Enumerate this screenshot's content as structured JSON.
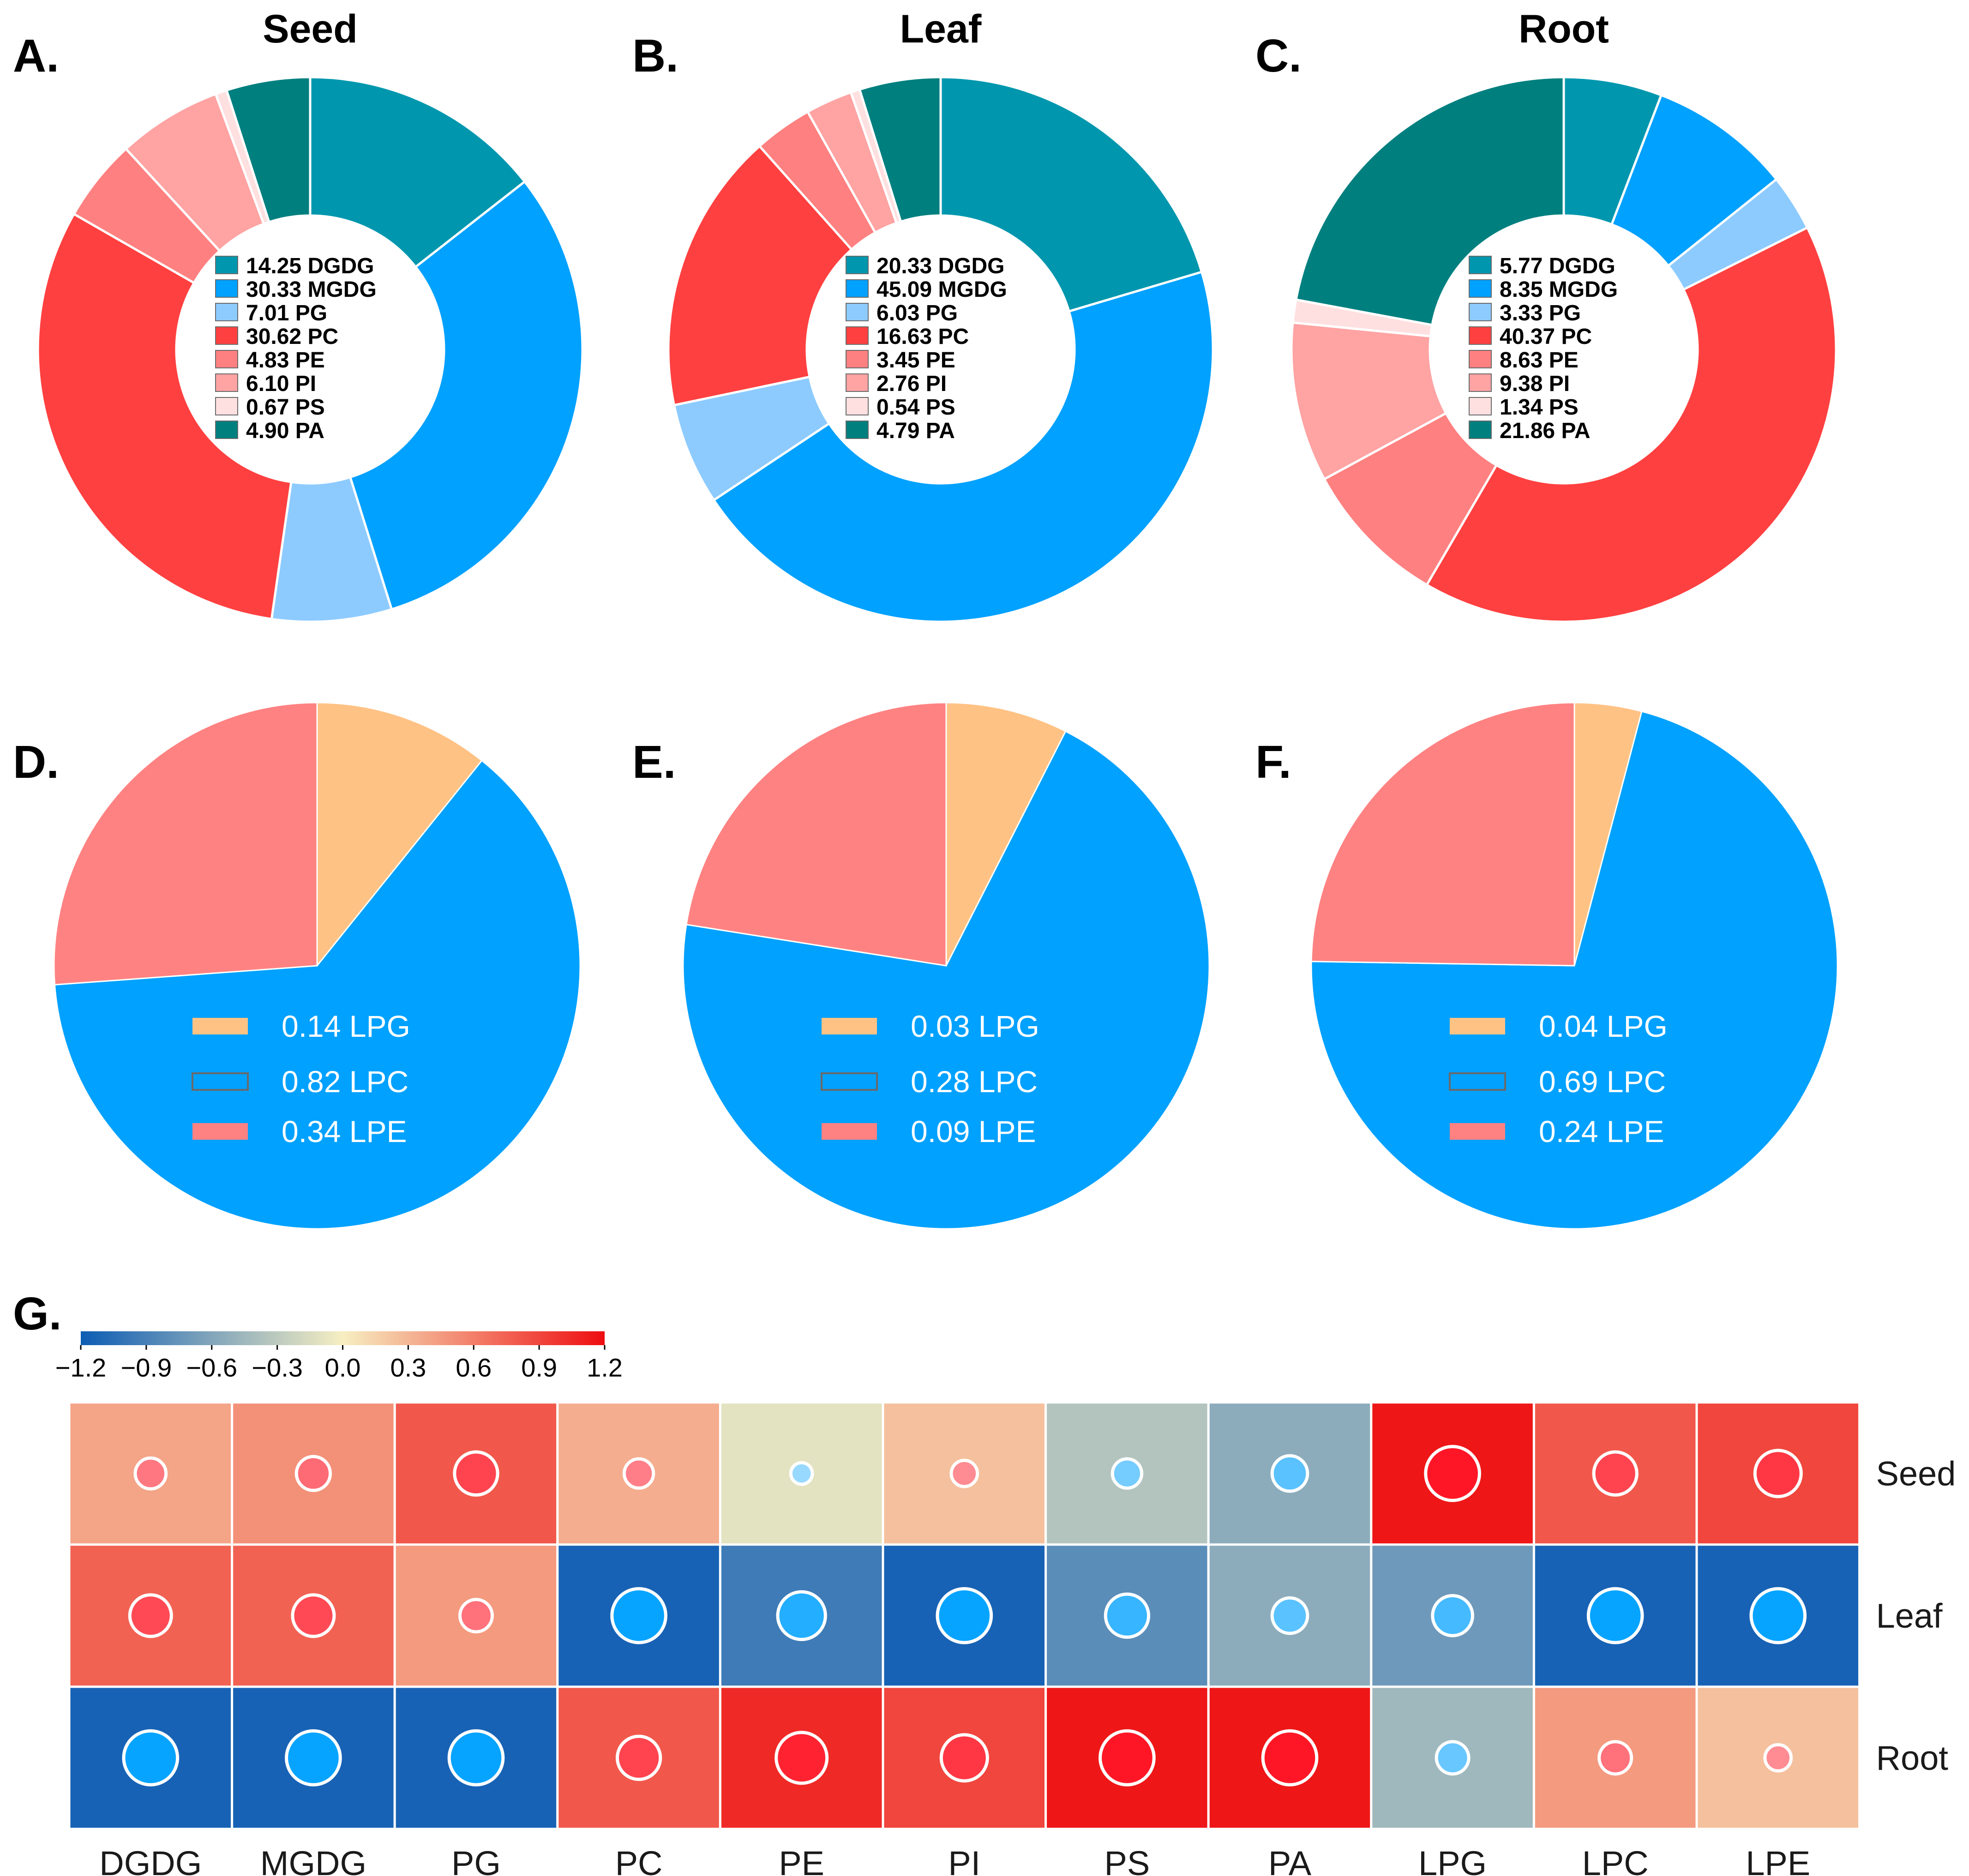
{
  "chart_data": [
    {
      "panel": "A.",
      "type": "pie",
      "subtype": "donut",
      "title": "Seed",
      "categories": [
        "DGDG",
        "MGDG",
        "PG",
        "PC",
        "PE",
        "PI",
        "PS",
        "PA"
      ],
      "values": [
        14.25,
        30.33,
        7.01,
        30.62,
        4.83,
        6.1,
        0.67,
        4.9
      ],
      "legend_labels": [
        "14.25 DGDG",
        "30.33 MGDG",
        "7.01 PG",
        "30.62 PC",
        "4.83 PE",
        "6.10 PI",
        "0.67 PS",
        "4.90 PA"
      ]
    },
    {
      "panel": "B.",
      "type": "pie",
      "subtype": "donut",
      "title": "Leaf",
      "categories": [
        "DGDG",
        "MGDG",
        "PG",
        "PC",
        "PE",
        "PI",
        "PS",
        "PA"
      ],
      "values": [
        20.33,
        45.09,
        6.03,
        16.63,
        3.45,
        2.76,
        0.54,
        4.79
      ],
      "legend_labels": [
        "20.33 DGDG",
        "45.09 MGDG",
        "6.03 PG",
        "16.63 PC",
        "3.45 PE",
        "2.76 PI",
        "0.54 PS",
        "4.79 PA"
      ]
    },
    {
      "panel": "C.",
      "type": "pie",
      "subtype": "donut",
      "title": "Root",
      "categories": [
        "DGDG",
        "MGDG",
        "PG",
        "PC",
        "PE",
        "PI",
        "PS",
        "PA"
      ],
      "values": [
        5.77,
        8.35,
        3.33,
        40.37,
        8.63,
        9.38,
        1.34,
        21.86
      ],
      "legend_labels": [
        "5.77 DGDG",
        "8.35 MGDG",
        "3.33 PG",
        "40.37 PC",
        "8.63 PE",
        "9.38 PI",
        "1.34 PS",
        "21.86 PA"
      ]
    },
    {
      "panel": "D.",
      "type": "pie",
      "title": "",
      "categories": [
        "LPG",
        "LPC",
        "LPE"
      ],
      "values": [
        0.14,
        0.82,
        0.34
      ],
      "legend_labels": [
        "0.14 LPG",
        "0.82 LPC",
        "0.34 LPE"
      ]
    },
    {
      "panel": "E.",
      "type": "pie",
      "title": "",
      "categories": [
        "LPG",
        "LPC",
        "LPE"
      ],
      "values": [
        0.03,
        0.28,
        0.09
      ],
      "legend_labels": [
        "0.03 LPG",
        "0.28 LPC",
        "0.09 LPE"
      ]
    },
    {
      "panel": "F.",
      "type": "pie",
      "title": "",
      "categories": [
        "LPG",
        "LPC",
        "LPE"
      ],
      "values": [
        0.04,
        0.69,
        0.24
      ],
      "legend_labels": [
        "0.04 LPG",
        "0.69 LPC",
        "0.24 LPE"
      ]
    },
    {
      "panel": "G.",
      "type": "heatmap",
      "title": "",
      "x": [
        "DGDG",
        "MGDG",
        "PG",
        "PC",
        "PE",
        "PI",
        "PS",
        "PA",
        "LPG",
        "LPC",
        "LPE"
      ],
      "y": [
        "Seed",
        "Leaf",
        "Root"
      ],
      "z": [
        [
          0.4,
          0.5,
          0.8,
          0.35,
          -0.1,
          0.25,
          -0.35,
          -0.55,
          1.15,
          0.8,
          0.9
        ],
        [
          0.75,
          0.75,
          0.45,
          -1.15,
          -0.95,
          -1.15,
          -0.8,
          -0.55,
          -0.7,
          -1.15,
          -1.15
        ],
        [
          -1.15,
          -1.15,
          -1.15,
          0.8,
          1.05,
          0.9,
          1.15,
          1.15,
          -0.45,
          0.45,
          0.25
        ]
      ],
      "zlim": [
        -1.2,
        1.2
      ],
      "colorbar_ticks": [
        "−1.2",
        "−0.9",
        "−0.6",
        "−0.3",
        "0.0",
        "0.3",
        "0.6",
        "0.9",
        "1.2"
      ]
    }
  ],
  "colors": {
    "DGDG": "#0097AE",
    "MGDG": "#00A1FF",
    "PG": "#8DCBFF",
    "PC": "#FF4040",
    "PE": "#FF8080",
    "PI": "#FFA3A3",
    "PS": "#FFE0E0",
    "PA": "#007F7F",
    "LPG": "#FFC285",
    "LPC": "#00A1FF",
    "LPE": "#FF8282",
    "heat_low": "#0D5CB4",
    "heat_mid": "#F7EFC2",
    "heat_high": "#EE0D10",
    "bubble_neg": "#00A1FF",
    "bubble_pos": "#FF1020"
  }
}
